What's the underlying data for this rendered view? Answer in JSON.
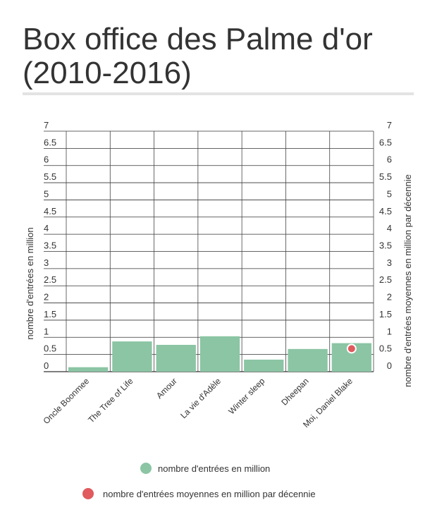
{
  "chart_data": {
    "type": "bar",
    "title": "Box office des Palme d'or (2010-2016)",
    "categories": [
      "Oncle Boonmee",
      "The Tree of Life",
      "Amour",
      "La vie d'Adèle",
      "Winter sleep",
      "Dheepan",
      "Moi, Daniel Blake"
    ],
    "series": [
      {
        "name": "nombre d'entrées en million",
        "type": "bar",
        "color": "#8bc5a4",
        "values": [
          0.13,
          0.88,
          0.78,
          1.03,
          0.35,
          0.66,
          0.83
        ]
      },
      {
        "name": "nombre d'entrées moyennes en million par décennie",
        "type": "scatter",
        "color": "#e05a5e",
        "points": [
          {
            "category": "Moi, Daniel Blake",
            "value": 0.67
          }
        ]
      }
    ],
    "ylabel": "nombre d'entrées en million",
    "y2label": "nombre d'entrées moyennes en million par décennie",
    "ylim": [
      0,
      7
    ],
    "y2lim": [
      0,
      7
    ],
    "yticks": [
      "0",
      "0.5",
      "1",
      "1.5",
      "2",
      "2.5",
      "3",
      "3.5",
      "4",
      "4.5",
      "5",
      "5.5",
      "6",
      "6.5",
      "7"
    ],
    "grid": true,
    "legend_position": "bottom"
  }
}
